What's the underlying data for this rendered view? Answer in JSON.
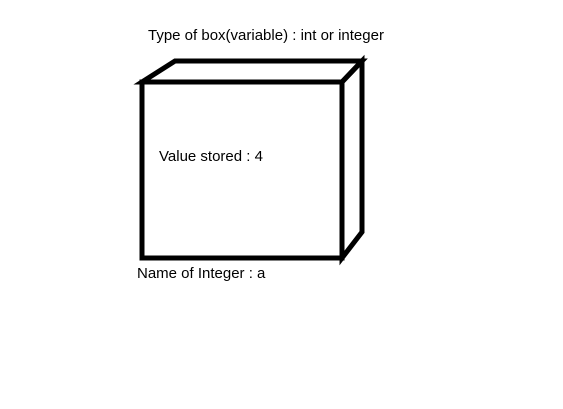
{
  "diagram": {
    "type_label": "Type of box(variable) : int or integer",
    "value_label": "Value stored :  4",
    "name_label": "Name of Integer : a",
    "stroke_color": "#000000",
    "background_color": "#ffffff"
  }
}
